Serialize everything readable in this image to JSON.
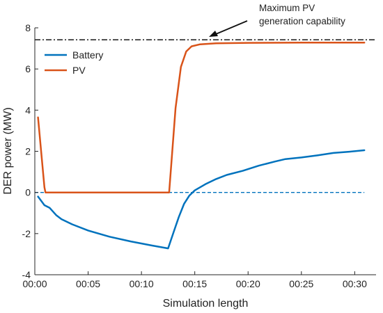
{
  "chart_data": {
    "type": "line",
    "xlabel": "Simulation length",
    "ylabel": "DER power (MW)",
    "xlim": [
      0,
      32
    ],
    "ylim": [
      -4,
      8
    ],
    "xticks": [
      {
        "v": 0,
        "label": "00:00"
      },
      {
        "v": 5,
        "label": "00:05"
      },
      {
        "v": 10,
        "label": "00:10"
      },
      {
        "v": 15,
        "label": "00:15"
      },
      {
        "v": 20,
        "label": "00:20"
      },
      {
        "v": 25,
        "label": "00:25"
      },
      {
        "v": 30,
        "label": "00:30"
      }
    ],
    "yticks": [
      {
        "v": -4,
        "label": "-4"
      },
      {
        "v": -2,
        "label": "-2"
      },
      {
        "v": 0,
        "label": "0"
      },
      {
        "v": 2,
        "label": "2"
      },
      {
        "v": 4,
        "label": "4"
      },
      {
        "v": 6,
        "label": "6"
      },
      {
        "v": 8,
        "label": "8"
      }
    ],
    "series": [
      {
        "name": "Battery",
        "color": "#0072BD",
        "x": [
          0.3,
          0.9,
          1.4,
          2.0,
          2.5,
          3.5,
          5.0,
          7.0,
          9.0,
          11.0,
          12.5,
          13.0,
          13.5,
          14.0,
          14.5,
          15.0,
          16.0,
          17.0,
          18.0,
          19.5,
          21.0,
          22.5,
          23.5,
          25.0,
          26.5,
          28.0,
          29.5,
          30.9
        ],
        "y": [
          -0.2,
          -0.62,
          -0.75,
          -1.1,
          -1.3,
          -1.55,
          -1.85,
          -2.15,
          -2.38,
          -2.58,
          -2.72,
          -1.95,
          -1.2,
          -0.55,
          -0.15,
          0.1,
          0.4,
          0.65,
          0.85,
          1.05,
          1.3,
          1.5,
          1.62,
          1.7,
          1.8,
          1.92,
          1.98,
          2.05
        ]
      },
      {
        "name": "PV",
        "color": "#D95319",
        "x": [
          0.3,
          0.9,
          1.0,
          12.6,
          13.2,
          13.7,
          14.2,
          14.7,
          15.5,
          17.0,
          20.0,
          25.0,
          30.9
        ],
        "y": [
          3.65,
          0.25,
          0.0,
          0.0,
          4.1,
          6.1,
          6.85,
          7.1,
          7.2,
          7.25,
          7.27,
          7.28,
          7.28
        ]
      }
    ],
    "reference_lines": [
      {
        "y": 7.42,
        "x_from": 0,
        "x_to": 32,
        "style": "dash-dot",
        "color": "#000000"
      },
      {
        "y": 0.0,
        "x_from": 0,
        "x_to": 30.9,
        "style": "dashed",
        "color": "#0072BD"
      }
    ],
    "legend": {
      "position": "top-left",
      "entries": [
        "Battery",
        "PV"
      ]
    },
    "annotation": {
      "lines": [
        "Maximum PV",
        "generation capability"
      ],
      "points_to": "Maximum PV generation capability line"
    },
    "grid": false
  }
}
